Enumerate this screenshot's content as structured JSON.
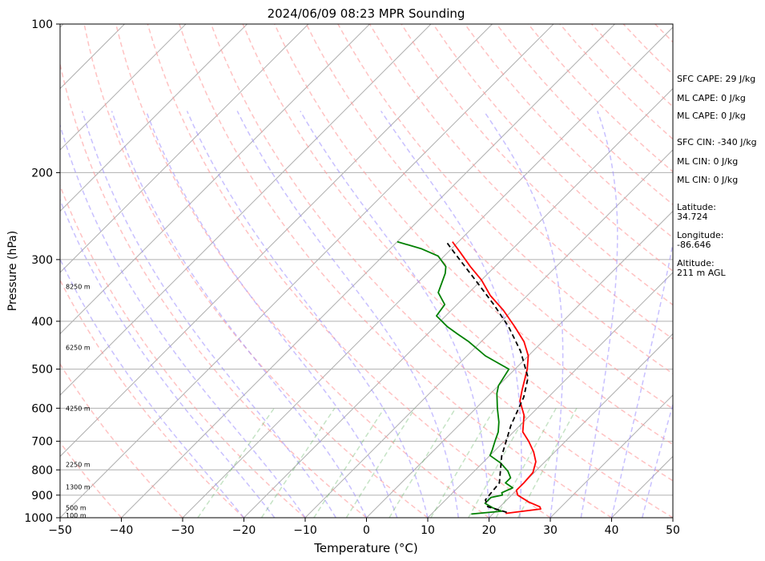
{
  "chart_data": {
    "type": "line",
    "title": "2024/06/09 08:23 MPR Sounding",
    "xlabel": "Temperature (°C)",
    "ylabel": "Pressure (hPa)",
    "xlim": [
      -50,
      50
    ],
    "ylim": [
      1000,
      100
    ],
    "y_scale": "log",
    "x_ticks": [
      -50,
      -40,
      -30,
      -20,
      -10,
      0,
      10,
      20,
      30,
      40,
      50
    ],
    "y_ticks": [
      1000,
      900,
      800,
      700,
      600,
      500,
      400,
      300,
      200,
      100
    ],
    "skew_deg_per_logp": 45,
    "grid": true,
    "altitude_labels": [
      {
        "text": "100 m",
        "p": 988
      },
      {
        "text": "500 m",
        "p": 955
      },
      {
        "text": "1300 m",
        "p": 866
      },
      {
        "text": "2250 m",
        "p": 780
      },
      {
        "text": "4250 m",
        "p": 600
      },
      {
        "text": "6250 m",
        "p": 452
      },
      {
        "text": "8250 m",
        "p": 340
      }
    ],
    "series": [
      {
        "type": "temperature",
        "color": "#ff0000",
        "points": [
          [
            22.0,
            980
          ],
          [
            27.0,
            960
          ],
          [
            26.5,
            950
          ],
          [
            24.0,
            930
          ],
          [
            21.0,
            900
          ],
          [
            20.0,
            880
          ],
          [
            20.0,
            850
          ],
          [
            19.8,
            810
          ],
          [
            18.5,
            770
          ],
          [
            16.5,
            735
          ],
          [
            14.0,
            700
          ],
          [
            11.5,
            670
          ],
          [
            9.0,
            620
          ],
          [
            6.0,
            580
          ],
          [
            4.5,
            550
          ],
          [
            2.0,
            500
          ],
          [
            0.0,
            470
          ],
          [
            -3.0,
            440
          ],
          [
            -7.0,
            410
          ],
          [
            -11.5,
            380
          ],
          [
            -16.0,
            355
          ],
          [
            -20.0,
            330
          ],
          [
            -24.0,
            310
          ],
          [
            -28.0,
            290
          ],
          [
            -31.0,
            276
          ]
        ]
      },
      {
        "type": "dewpoint",
        "color": "#008000",
        "points": [
          [
            16.5,
            983
          ],
          [
            21.0,
            970
          ],
          [
            19.0,
            955
          ],
          [
            17.0,
            935
          ],
          [
            17.0,
            910
          ],
          [
            18.5,
            900
          ],
          [
            18.0,
            890
          ],
          [
            19.0,
            870
          ],
          [
            17.0,
            850
          ],
          [
            17.0,
            830
          ],
          [
            15.5,
            805
          ],
          [
            13.0,
            775
          ],
          [
            10.0,
            748
          ],
          [
            9.5,
            730
          ],
          [
            8.5,
            700
          ],
          [
            7.5,
            670
          ],
          [
            6.0,
            640
          ],
          [
            3.5,
            600
          ],
          [
            1.0,
            560
          ],
          [
            0.0,
            540
          ],
          [
            -1.0,
            500
          ],
          [
            -7.0,
            470
          ],
          [
            -12.0,
            440
          ],
          [
            -15.0,
            425
          ],
          [
            -18.0,
            410
          ],
          [
            -21.5,
            390
          ],
          [
            -22.0,
            370
          ],
          [
            -25.0,
            350
          ],
          [
            -27.0,
            320
          ],
          [
            -28.0,
            310
          ],
          [
            -31.0,
            295
          ],
          [
            -35.0,
            285
          ],
          [
            -40.0,
            276
          ]
        ]
      },
      {
        "type": "parcel",
        "color": "#000000",
        "points": [
          [
            22.0,
            975
          ],
          [
            18.0,
            950
          ],
          [
            16.5,
            920
          ],
          [
            16.0,
            850
          ],
          [
            12.0,
            750
          ],
          [
            8.5,
            650
          ],
          [
            6.0,
            570
          ],
          [
            3.5,
            520
          ],
          [
            -2.0,
            460
          ],
          [
            -8.0,
            410
          ],
          [
            -14.0,
            370
          ],
          [
            -21.0,
            330
          ],
          [
            -29.0,
            290
          ],
          [
            -32.0,
            276
          ]
        ]
      }
    ]
  },
  "indices": {
    "sfc_cape": "SFC CAPE: 29 J/kg",
    "ml_cape_1": "ML CAPE: 0 J/kg",
    "ml_cape_2": "ML CAPE: 0 J/kg",
    "sfc_cin": "SFC CIN: -340 J/kg",
    "ml_cin_1": "ML CIN: 0 J/kg",
    "ml_cin_2": "ML CIN: 0 J/kg"
  },
  "location": {
    "latitude_label": "Latitude:",
    "latitude_value": "34.724",
    "longitude_label": "Longitude:",
    "longitude_value": "-86.646",
    "altitude_label": "Altitude:",
    "altitude_value": "211 m AGL"
  }
}
